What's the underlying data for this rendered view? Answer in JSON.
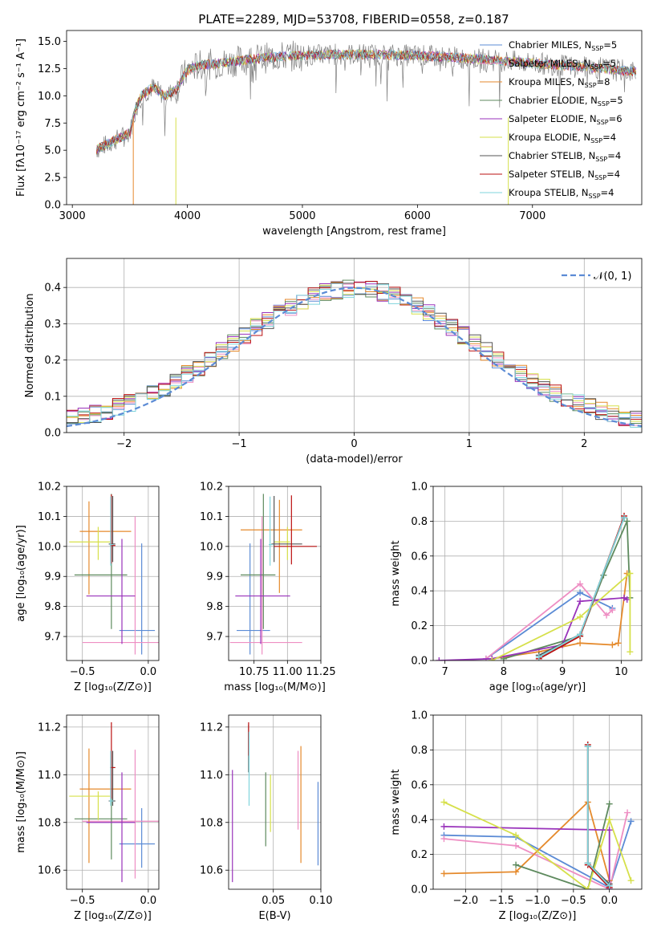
{
  "chart_data": [
    {
      "id": "spectrum",
      "type": "line",
      "title": "PLATE=2289, MJD=53708, FIBERID=0558, z=0.187",
      "xlabel": "wavelength [Angstrom, rest frame]",
      "ylabel": "Flux [fλ10⁻¹⁷ erg cm⁻² s⁻¹ A⁻¹]",
      "xlim": [
        2950,
        7950
      ],
      "ylim": [
        0,
        16
      ],
      "xticks": [
        3000,
        4000,
        5000,
        6000,
        7000
      ],
      "yticks": [
        0.0,
        2.5,
        5.0,
        7.5,
        10.0,
        12.5,
        15.0
      ],
      "xtick_labels": [
        "3000",
        "4000",
        "5000",
        "6000",
        "7000"
      ],
      "ytick_labels": [
        "0.0",
        "2.5",
        "5.0",
        "7.5",
        "10.0",
        "12.5",
        "15.0"
      ],
      "legend_position": "top-right",
      "continuum": {
        "x": [
          3200,
          3500,
          3540,
          3600,
          3700,
          3800,
          3900,
          3950,
          4000,
          4100,
          4300,
          4500,
          4800,
          5000,
          5300,
          5500,
          6000,
          6500,
          7000,
          7500,
          7900
        ],
        "y": [
          5.0,
          6.6,
          8.5,
          10.0,
          10.8,
          10.0,
          10.5,
          11.5,
          12.3,
          12.8,
          13.0,
          13.3,
          13.6,
          13.7,
          13.8,
          13.8,
          13.7,
          13.4,
          13.0,
          12.6,
          12.2
        ]
      },
      "series": [
        {
          "name": "Chabrier MILES, N_SSP=5",
          "color": "#5b8bd5"
        },
        {
          "name": "Salpeter MILES, N_SSP=5",
          "color": "#ee8ec3"
        },
        {
          "name": "Kroupa MILES, N_SSP=8",
          "color": "#e58a2c"
        },
        {
          "name": "Chabrier ELODIE, N_SSP=5",
          "color": "#5e8a5e"
        },
        {
          "name": "Salpeter ELODIE, N_SSP=6",
          "color": "#9933bb"
        },
        {
          "name": "Kroupa ELODIE, N_SSP=4",
          "color": "#d6e04a"
        },
        {
          "name": "Chabrier STELIB, N_SSP=4",
          "color": "#555555"
        },
        {
          "name": "Salpeter STELIB, N_SSP=4",
          "color": "#bb1111"
        },
        {
          "name": "Kroupa STELIB, N_SSP=4",
          "color": "#7fd4dc"
        }
      ],
      "data_color": "#808080"
    },
    {
      "id": "residuals",
      "type": "histogram",
      "xlabel": "(data-model)/error",
      "ylabel": "Normed distribution",
      "xlim": [
        -2.5,
        2.5
      ],
      "ylim": [
        0,
        0.48
      ],
      "xticks": [
        -2,
        -1,
        0,
        1,
        2
      ],
      "yticks": [
        0.0,
        0.1,
        0.2,
        0.3,
        0.4
      ],
      "xtick_labels": [
        "−2",
        "−1",
        "0",
        "1",
        "2"
      ],
      "ytick_labels": [
        "0.0",
        "0.1",
        "0.2",
        "0.3",
        "0.4"
      ],
      "legend": "𝒩(0, 1)",
      "legend_position": "top-right",
      "gaussian": {
        "mean": 0,
        "sigma": 1,
        "color": "#5b8bd5"
      },
      "bin_width": 0.1,
      "bin_start": -2.5
    },
    {
      "id": "age-vs-z",
      "type": "errorbar",
      "xlabel": "Z [log₁₀(Z/Z⊙)]",
      "ylabel": "age  [log₁₀(age/yr)]",
      "xlim": [
        -0.62,
        0.08
      ],
      "ylim": [
        9.62,
        10.2
      ],
      "xticks": [
        -0.5,
        0.0
      ],
      "yticks": [
        9.7,
        9.8,
        9.9,
        10.0,
        10.1,
        10.2
      ],
      "xtick_labels": [
        "−0.5",
        "0.0"
      ],
      "ytick_labels": [
        "9.7",
        "9.8",
        "9.9",
        "10.0",
        "10.1",
        "10.2"
      ],
      "points": [
        {
          "x": -0.05,
          "y": 9.72,
          "xerr": [
            0.17,
            0.1
          ],
          "yerr": [
            0.08,
            0.29
          ],
          "color": "#5b8bd5"
        },
        {
          "x": -0.1,
          "y": 9.68,
          "xerr": [
            0.4,
            0.18
          ],
          "yerr": [
            0.04,
            0.42
          ],
          "color": "#ee8ec3"
        },
        {
          "x": -0.45,
          "y": 10.05,
          "xerr": [
            0.07,
            0.32
          ],
          "yerr": [
            0.21,
            0.1
          ],
          "color": "#e58a2c"
        },
        {
          "x": -0.28,
          "y": 9.905,
          "xerr": [
            0.28,
            0.12
          ],
          "yerr": [
            0.18,
            0.27
          ],
          "color": "#5e8a5e"
        },
        {
          "x": -0.2,
          "y": 9.835,
          "xerr": [
            0.27,
            0.1
          ],
          "yerr": [
            0.16,
            0.19
          ],
          "color": "#9933bb"
        },
        {
          "x": -0.38,
          "y": 10.015,
          "xerr": [
            0.22,
            0.09
          ],
          "yerr": [
            0.06,
            0.05
          ],
          "color": "#d6e04a"
        },
        {
          "x": -0.27,
          "y": 10.008,
          "xerr": [
            0.03,
            0.02
          ],
          "yerr": [
            0.06,
            0.16
          ],
          "color": "#555555"
        },
        {
          "x": -0.28,
          "y": 10.003,
          "xerr": [
            0.01,
            0.03
          ],
          "yerr": [
            0.06,
            0.17
          ],
          "color": "#bb1111"
        },
        {
          "x": -0.285,
          "y": 10.006,
          "xerr": [
            0.01,
            0.02
          ],
          "yerr": [
            0.07,
            0.16
          ],
          "color": "#7fd4dc"
        }
      ]
    },
    {
      "id": "age-vs-mass",
      "type": "errorbar",
      "xlabel": "mass [log₁₀(M/M⊙)]",
      "ylabel": "",
      "xlim": [
        10.56,
        11.25
      ],
      "ylim": [
        9.62,
        10.2
      ],
      "xticks": [
        10.75,
        11.0,
        11.25
      ],
      "yticks": [
        9.7,
        9.8,
        9.9,
        10.0,
        10.1,
        10.2
      ],
      "xtick_labels": [
        "10.75",
        "11.00",
        "11.25"
      ],
      "ytick_labels": [
        "9.7",
        "9.8",
        "9.9",
        "10.0",
        "10.1",
        "10.2"
      ],
      "points": [
        {
          "x": 10.72,
          "y": 9.72,
          "xerr": [
            0.1,
            0.15
          ],
          "yerr": [
            0.08,
            0.29
          ],
          "color": "#5b8bd5"
        },
        {
          "x": 10.81,
          "y": 9.68,
          "xerr": [
            0.24,
            0.3
          ],
          "yerr": [
            0.04,
            0.42
          ],
          "color": "#ee8ec3"
        },
        {
          "x": 10.94,
          "y": 10.055,
          "xerr": [
            0.29,
            0.17
          ],
          "yerr": [
            0.21,
            0.1
          ],
          "color": "#e58a2c"
        },
        {
          "x": 10.82,
          "y": 9.905,
          "xerr": [
            0.17,
            0.09
          ],
          "yerr": [
            0.18,
            0.27
          ],
          "color": "#5e8a5e"
        },
        {
          "x": 10.8,
          "y": 9.835,
          "xerr": [
            0.19,
            0.22
          ],
          "yerr": [
            0.16,
            0.19
          ],
          "color": "#9933bb"
        },
        {
          "x": 11.0,
          "y": 10.015,
          "xerr": [
            0.1,
            0.02
          ],
          "yerr": [
            0.06,
            0.05
          ],
          "color": "#d6e04a"
        },
        {
          "x": 10.9,
          "y": 10.008,
          "xerr": [
            0.02,
            0.21
          ],
          "yerr": [
            0.06,
            0.16
          ],
          "color": "#555555"
        },
        {
          "x": 11.03,
          "y": 10.0,
          "xerr": [
            0.13,
            0.19
          ],
          "yerr": [
            0.06,
            0.17
          ],
          "color": "#bb1111"
        },
        {
          "x": 10.87,
          "y": 10.006,
          "xerr": [
            0.01,
            0.02
          ],
          "yerr": [
            0.07,
            0.16
          ],
          "color": "#7fd4dc"
        }
      ]
    },
    {
      "id": "massweight-vs-age",
      "type": "line",
      "xlabel": "age  [log₁₀(age/yr)]",
      "ylabel": "mass weight",
      "xlim": [
        6.8,
        10.35
      ],
      "ylim": [
        0,
        1
      ],
      "xticks": [
        7,
        8,
        9,
        10
      ],
      "yticks": [
        0.0,
        0.2,
        0.4,
        0.6,
        0.8,
        1.0
      ],
      "xtick_labels": [
        "7",
        "8",
        "9",
        "10"
      ],
      "ytick_labels": [
        "0.0",
        "0.2",
        "0.4",
        "0.6",
        "0.8",
        "1.0"
      ],
      "series": [
        {
          "color": "#5b8bd5",
          "x": [
            7.7,
            9.3,
            9.85
          ],
          "y": [
            0.01,
            0.39,
            0.3
          ]
        },
        {
          "color": "#ee8ec3",
          "x": [
            7.7,
            9.3,
            9.75,
            9.85
          ],
          "y": [
            0.01,
            0.44,
            0.26,
            0.29
          ]
        },
        {
          "color": "#e58a2c",
          "x": [
            7.8,
            8.6,
            9.3,
            9.85,
            9.95,
            10.1
          ],
          "y": [
            0.01,
            0.05,
            0.1,
            0.09,
            0.1,
            0.5
          ]
        },
        {
          "color": "#5e8a5e",
          "x": [
            8.0,
            9.3,
            9.7,
            10.1,
            10.15
          ],
          "y": [
            0.01,
            0.14,
            0.49,
            0.8,
            0.36
          ]
        },
        {
          "color": "#9933bb",
          "x": [
            6.9,
            7.8,
            9.0,
            9.3,
            10.05,
            10.1
          ],
          "y": [
            0.0,
            0.01,
            0.09,
            0.34,
            0.36,
            0.35
          ]
        },
        {
          "color": "#d6e04a",
          "x": [
            7.8,
            9.3,
            10.15,
            10.15
          ],
          "y": [
            0.0,
            0.25,
            0.5,
            0.05
          ]
        },
        {
          "color": "#555555",
          "x": [
            8.6,
            9.3,
            10.05
          ],
          "y": [
            0.03,
            0.15,
            0.82
          ]
        },
        {
          "color": "#bb1111",
          "x": [
            8.6,
            9.3,
            10.05
          ],
          "y": [
            0.01,
            0.14,
            0.83
          ]
        },
        {
          "color": "#7fd4dc",
          "x": [
            8.6,
            9.3,
            10.05
          ],
          "y": [
            0.02,
            0.15,
            0.82
          ]
        }
      ]
    },
    {
      "id": "mass-vs-z",
      "type": "errorbar",
      "xlabel": "Z [log₁₀(Z/Z⊙)]",
      "ylabel": "mass [log₁₀(M/M⊙)]",
      "xlim": [
        -0.62,
        0.08
      ],
      "ylim": [
        10.52,
        11.25
      ],
      "xticks": [
        -0.5,
        0.0
      ],
      "yticks": [
        10.6,
        10.8,
        11.0,
        11.2
      ],
      "xtick_labels": [
        "−0.5",
        "0.0"
      ],
      "ytick_labels": [
        "10.6",
        "10.8",
        "11.0",
        "11.2"
      ],
      "points": [
        {
          "x": -0.05,
          "y": 10.71,
          "xerr": [
            0.17,
            0.1
          ],
          "yerr": [
            0.1,
            0.15
          ],
          "color": "#5b8bd5"
        },
        {
          "x": -0.1,
          "y": 10.805,
          "xerr": [
            0.4,
            0.18
          ],
          "yerr": [
            0.24,
            0.3
          ],
          "color": "#ee8ec3"
        },
        {
          "x": -0.45,
          "y": 10.94,
          "xerr": [
            0.07,
            0.32
          ],
          "yerr": [
            0.31,
            0.17
          ],
          "color": "#e58a2c"
        },
        {
          "x": -0.28,
          "y": 10.815,
          "xerr": [
            0.28,
            0.12
          ],
          "yerr": [
            0.17,
            0.09
          ],
          "color": "#5e8a5e"
        },
        {
          "x": -0.2,
          "y": 10.8,
          "xerr": [
            0.27,
            0.1
          ],
          "yerr": [
            0.25,
            0.21
          ],
          "color": "#9933bb"
        },
        {
          "x": -0.38,
          "y": 10.91,
          "xerr": [
            0.22,
            0.09
          ],
          "yerr": [
            0.1,
            0.02
          ],
          "color": "#d6e04a"
        },
        {
          "x": -0.27,
          "y": 10.89,
          "xerr": [
            0.03,
            0.02
          ],
          "yerr": [
            0.02,
            0.21
          ],
          "color": "#555555"
        },
        {
          "x": -0.28,
          "y": 11.03,
          "xerr": [
            0.01,
            0.03
          ],
          "yerr": [
            0.13,
            0.19
          ],
          "color": "#bb1111"
        },
        {
          "x": -0.285,
          "y": 10.89,
          "xerr": [
            0.01,
            0.02
          ],
          "yerr": [
            0.02,
            0.21
          ],
          "color": "#7fd4dc"
        }
      ]
    },
    {
      "id": "mass-vs-ebv",
      "type": "errorbar",
      "xlabel": "E(B-V)",
      "ylabel": "",
      "xlim": [
        0.003,
        0.1
      ],
      "ylim": [
        10.52,
        11.25
      ],
      "xticks": [
        0.05,
        0.1
      ],
      "yticks": [
        10.6,
        10.8,
        11.0,
        11.2
      ],
      "xtick_labels": [
        "0.05",
        "0.10"
      ],
      "ytick_labels": [
        "10.6",
        "10.8",
        "11.0",
        "11.2"
      ],
      "points": [
        {
          "x": 0.097,
          "y": 10.79,
          "yerr": [
            0.17,
            0.18
          ],
          "color": "#5b8bd5"
        },
        {
          "x": 0.076,
          "y": 10.95,
          "yerr": [
            0.18,
            0.15
          ],
          "color": "#ee8ec3"
        },
        {
          "x": 0.079,
          "y": 10.88,
          "yerr": [
            0.25,
            0.24
          ],
          "color": "#e58a2c"
        },
        {
          "x": 0.042,
          "y": 10.86,
          "yerr": [
            0.16,
            0.15
          ],
          "color": "#5e8a5e"
        },
        {
          "x": 0.007,
          "y": 10.79,
          "yerr": [
            0.24,
            0.23
          ],
          "color": "#9933bb"
        },
        {
          "x": 0.047,
          "y": 10.88,
          "yerr": [
            0.12,
            0.12
          ],
          "color": "#d6e04a"
        },
        {
          "x": 0.024,
          "y": 11.08,
          "yerr": [
            0.07,
            0.13
          ],
          "color": "#555555"
        },
        {
          "x": 0.024,
          "y": 11.12,
          "yerr": [
            0.04,
            0.1
          ],
          "color": "#bb1111"
        },
        {
          "x": 0.0245,
          "y": 11.0,
          "yerr": [
            0.13,
            0.18
          ],
          "color": "#7fd4dc"
        }
      ]
    },
    {
      "id": "massweight-vs-z",
      "type": "line",
      "xlabel": "Z [log₁₀(Z/Z⊙)]",
      "ylabel": "mass weight",
      "xlim": [
        -2.45,
        0.45
      ],
      "ylim": [
        0,
        1
      ],
      "xticks": [
        -2.0,
        -1.5,
        -1.0,
        -0.5,
        0.0
      ],
      "yticks": [
        0.0,
        0.2,
        0.4,
        0.6,
        0.8,
        1.0
      ],
      "xtick_labels": [
        "−2.0",
        "−1.5",
        "−1.0",
        "−0.5",
        "0.0"
      ],
      "ytick_labels": [
        "0.0",
        "0.2",
        "0.4",
        "0.6",
        "0.8",
        "1.0"
      ],
      "series": [
        {
          "color": "#5b8bd5",
          "x": [
            -2.3,
            -1.3,
            0.0,
            0.3
          ],
          "y": [
            0.31,
            0.3,
            0.01,
            0.39
          ]
        },
        {
          "color": "#ee8ec3",
          "x": [
            -2.3,
            -1.3,
            0.0,
            0.25
          ],
          "y": [
            0.29,
            0.25,
            0.0,
            0.44
          ]
        },
        {
          "color": "#e58a2c",
          "x": [
            -2.3,
            -1.3,
            -0.3,
            0.0
          ],
          "y": [
            0.09,
            0.1,
            0.5,
            0.05
          ]
        },
        {
          "color": "#5e8a5e",
          "x": [
            -1.3,
            -0.3,
            0.0,
            -0.3
          ],
          "y": [
            0.14,
            0.0,
            0.49,
            0.0
          ]
        },
        {
          "color": "#9933bb",
          "x": [
            -2.3,
            0.0,
            0.0
          ],
          "y": [
            0.36,
            0.34,
            0.0
          ]
        },
        {
          "color": "#d6e04a",
          "x": [
            -2.3,
            -1.3,
            -0.3,
            0.0,
            0.3
          ],
          "y": [
            0.5,
            0.31,
            0.0,
            0.4,
            0.05
          ]
        },
        {
          "color": "#555555",
          "x": [
            -0.3,
            -0.3,
            0.0
          ],
          "y": [
            0.82,
            0.15,
            0.03
          ]
        },
        {
          "color": "#bb1111",
          "x": [
            -0.3,
            -0.3,
            0.0
          ],
          "y": [
            0.83,
            0.14,
            0.01
          ]
        },
        {
          "color": "#7fd4dc",
          "x": [
            -0.3,
            -0.3,
            0.0
          ],
          "y": [
            0.82,
            0.15,
            0.02
          ]
        }
      ]
    }
  ]
}
